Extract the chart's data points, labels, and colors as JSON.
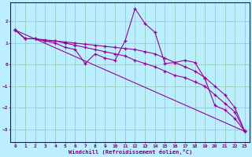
{
  "xlabel": "Windchill (Refroidissement éolien,°C)",
  "bg_color": "#bbeeff",
  "line_color": "#990099",
  "grid_color": "#99ccbb",
  "axis_color": "#770077",
  "spine_color": "#550055",
  "xlim": [
    -0.5,
    23.5
  ],
  "ylim": [
    -3.6,
    2.9
  ],
  "xticks": [
    0,
    1,
    2,
    3,
    4,
    5,
    6,
    7,
    8,
    9,
    10,
    11,
    12,
    13,
    14,
    15,
    16,
    17,
    18,
    19,
    20,
    21,
    22,
    23
  ],
  "yticks": [
    -3,
    -2,
    -1,
    0,
    1,
    2
  ],
  "lines": [
    {
      "x": [
        0,
        1,
        2,
        3,
        4,
        5,
        6,
        7,
        8,
        9,
        10,
        11,
        12,
        13,
        14,
        15,
        16,
        17,
        18,
        19,
        20,
        21,
        22,
        23
      ],
      "y": [
        1.6,
        1.2,
        1.2,
        1.1,
        1.0,
        0.8,
        0.7,
        0.05,
        0.5,
        0.3,
        0.2,
        1.1,
        2.6,
        1.9,
        1.5,
        0.05,
        0.1,
        0.2,
        0.1,
        -0.65,
        -1.9,
        -2.1,
        -2.5,
        -3.1
      ]
    },
    {
      "x": [
        0,
        1,
        2,
        3,
        4,
        5,
        6,
        7,
        8,
        9,
        10,
        11,
        12,
        13,
        14,
        15,
        16,
        17,
        18,
        19,
        20,
        21,
        22,
        23
      ],
      "y": [
        1.6,
        1.2,
        1.2,
        1.1,
        1.1,
        1.0,
        0.9,
        0.8,
        0.7,
        0.6,
        0.5,
        0.4,
        0.2,
        0.05,
        -0.1,
        -0.3,
        -0.5,
        -0.6,
        -0.8,
        -1.0,
        -1.4,
        -1.8,
        -2.2,
        -3.1
      ]
    },
    {
      "x": [
        0,
        23
      ],
      "y": [
        1.6,
        -3.1
      ]
    },
    {
      "x": [
        0,
        1,
        2,
        3,
        4,
        5,
        6,
        7,
        8,
        9,
        10,
        11,
        12,
        13,
        14,
        15,
        16,
        17,
        18,
        19,
        20,
        21,
        22,
        23
      ],
      "y": [
        1.6,
        1.2,
        1.2,
        1.15,
        1.1,
        1.05,
        1.0,
        0.95,
        0.9,
        0.85,
        0.8,
        0.75,
        0.7,
        0.6,
        0.5,
        0.3,
        0.1,
        -0.1,
        -0.3,
        -0.6,
        -1.0,
        -1.4,
        -2.0,
        -3.1
      ]
    }
  ]
}
